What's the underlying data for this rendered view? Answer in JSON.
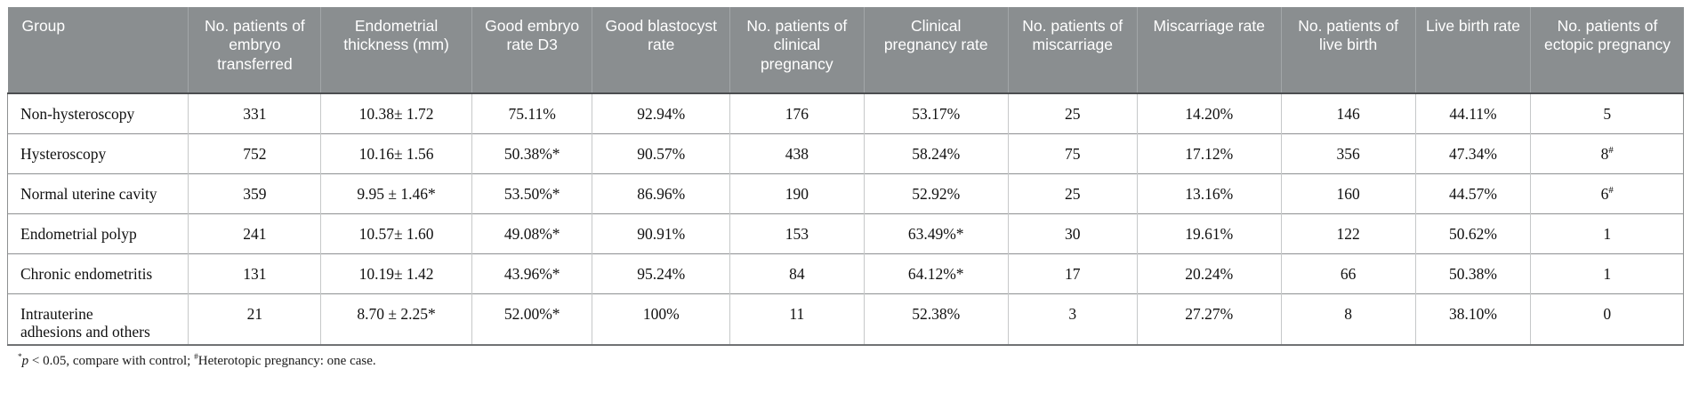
{
  "colors": {
    "header_bg": "#8a8e90",
    "header_text": "#ffffff"
  },
  "table": {
    "columns": [
      {
        "label": "Group"
      },
      {
        "label": "No. patients of embryo transferred"
      },
      {
        "label": "Endometrial thickness (mm)"
      },
      {
        "label": "Good embryo rate D3"
      },
      {
        "label": "Good blastocyst rate"
      },
      {
        "label": "No. patients of clinical pregnancy"
      },
      {
        "label": "Clinical pregnancy rate"
      },
      {
        "label": "No. patients of miscarriage"
      },
      {
        "label": "Miscarriage rate"
      },
      {
        "label": "No. patients of live birth"
      },
      {
        "label": "Live birth rate"
      },
      {
        "label": "No. patients of ectopic pregnancy"
      }
    ],
    "rows": [
      {
        "group": "Non-hysteroscopy",
        "cells": [
          "331",
          "10.38± 1.72",
          "75.11%",
          "92.94%",
          "176",
          "53.17%",
          "25",
          "14.20%",
          "146",
          "44.11%",
          "5"
        ]
      },
      {
        "group": "Hysteroscopy",
        "cells": [
          "752",
          "10.16± 1.56",
          "50.38%*",
          "90.57%",
          "438",
          "58.24%",
          "75",
          "17.12%",
          "356",
          "47.34%",
          "8^#"
        ]
      },
      {
        "group": "Normal uterine cavity",
        "cells": [
          "359",
          "9.95 ± 1.46*",
          "53.50%*",
          "86.96%",
          "190",
          "52.92%",
          "25",
          "13.16%",
          "160",
          "44.57%",
          "6^#"
        ]
      },
      {
        "group": "Endometrial polyp",
        "cells": [
          "241",
          "10.57± 1.60",
          "49.08%*",
          "90.91%",
          "153",
          "63.49%*",
          "30",
          "19.61%",
          "122",
          "50.62%",
          "1"
        ]
      },
      {
        "group": "Chronic endometritis",
        "cells": [
          "131",
          "10.19± 1.42",
          "43.96%*",
          "95.24%",
          "84",
          "64.12%*",
          "17",
          "20.24%",
          "66",
          "50.38%",
          "1"
        ]
      },
      {
        "group": "Intrauterine\nadhesions and others",
        "cells": [
          "21",
          "8.70 ± 2.25*",
          "52.00%*",
          "100%",
          "11",
          "52.38%",
          "3",
          "27.27%",
          "8",
          "38.10%",
          "0"
        ]
      }
    ]
  },
  "footnote": {
    "star_marker": "*",
    "p_symbol": "p",
    "star_text": " < 0.05, compare with control; ",
    "hash_marker": "#",
    "hash_text": "Heterotopic pregnancy: one case."
  }
}
